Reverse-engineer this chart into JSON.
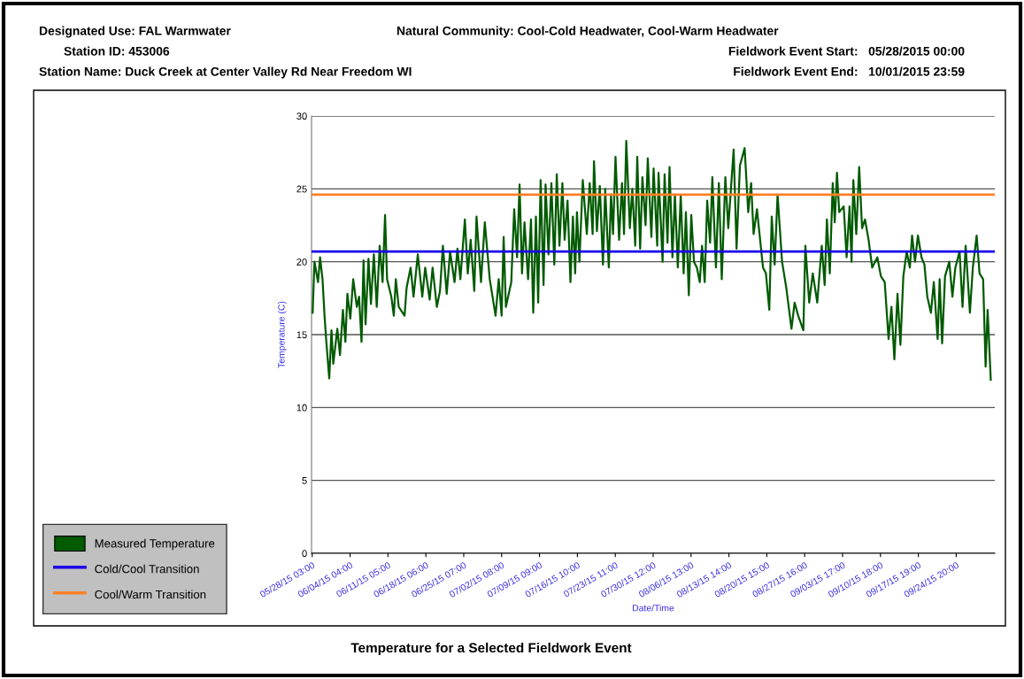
{
  "chart_data": {
    "type": "line",
    "title": "Temperature for a Selected Fieldwork Event",
    "xlabel": "Date/Time",
    "ylabel": "Temperature (C)",
    "annotations": [
      "Designated Use: FAL Warmwater",
      "Natural Community: Cool-Cold Headwater, Cool-Warm Headwater",
      "Station ID: 453006",
      "Fieldwork Event Start:   05/28/2015 00:00",
      "Station Name: Duck Creek at Center Valley Rd Near Freedom WI",
      "Fieldwork Event End:   10/01/2015 23:59"
    ],
    "xlim": [
      "2015-05-28T00:00",
      "2015-10-01T23:59"
    ],
    "xticks": [
      {
        "value": "2015-05-28T03:00",
        "label": "05/28/15 03:00"
      },
      {
        "value": "2015-06-04T04:00",
        "label": "06/04/15 04:00"
      },
      {
        "value": "2015-06-11T05:00",
        "label": "06/11/15 05:00"
      },
      {
        "value": "2015-06-18T06:00",
        "label": "06/18/15 06:00"
      },
      {
        "value": "2015-06-25T07:00",
        "label": "06/25/15 07:00"
      },
      {
        "value": "2015-07-02T08:00",
        "label": "07/02/15 08:00"
      },
      {
        "value": "2015-07-09T09:00",
        "label": "07/09/15 09:00"
      },
      {
        "value": "2015-07-16T10:00",
        "label": "07/16/15 10:00"
      },
      {
        "value": "2015-07-23T11:00",
        "label": "07/23/15 11:00"
      },
      {
        "value": "2015-07-30T12:00",
        "label": "07/30/15 12:00"
      },
      {
        "value": "2015-08-06T13:00",
        "label": "08/06/15 13:00"
      },
      {
        "value": "2015-08-13T14:00",
        "label": "08/13/15 14:00"
      },
      {
        "value": "2015-08-20T15:00",
        "label": "08/20/15 15:00"
      },
      {
        "value": "2015-08-27T16:00",
        "label": "08/27/15 16:00"
      },
      {
        "value": "2015-09-03T17:00",
        "label": "09/03/15 17:00"
      },
      {
        "value": "2015-09-10T18:00",
        "label": "09/10/15 18:00"
      },
      {
        "value": "2015-09-17T19:00",
        "label": "09/17/15 19:00"
      },
      {
        "value": "2015-09-24T20:00",
        "label": "09/24/15 20:00"
      }
    ],
    "ylim": [
      0,
      30
    ],
    "yticks": [
      0,
      5,
      10,
      15,
      20,
      25,
      30
    ],
    "grid": "y",
    "legend": "bottom left",
    "ref_lines": [
      {
        "axis": "y",
        "value": 20.7,
        "label": "Cold/Cool Transition",
        "color": "#1a00e6"
      },
      {
        "axis": "y",
        "value": 24.6,
        "label": "Cool/Warm Transition",
        "color": "#ff7f27"
      }
    ],
    "series": [
      {
        "name": "Measured Temperature",
        "color": "#005a00",
        "x": [
          "2015-05-28T05:00",
          "2015-05-28T13:00",
          "2015-05-29T05:00",
          "2015-05-29T14:00",
          "2015-05-30T01:00",
          "2015-05-30T10:00",
          "2015-05-30T18:00",
          "2015-05-31T07:00",
          "2015-05-31T17:00",
          "2015-06-01T01:00",
          "2015-06-01T19:00",
          "2015-06-02T07:00",
          "2015-06-02T20:00",
          "2015-06-03T07:00",
          "2015-06-03T16:00",
          "2015-06-04T05:00",
          "2015-06-04T18:00",
          "2015-06-05T10:00",
          "2015-06-05T20:00",
          "2015-06-06T07:00",
          "2015-06-06T16:00",
          "2015-06-07T01:00",
          "2015-06-07T14:00",
          "2015-06-08T01:00",
          "2015-06-08T14:00",
          "2015-06-09T03:00",
          "2015-06-09T16:00",
          "2015-06-10T05:00",
          "2015-06-10T16:00",
          "2015-06-11T01:00",
          "2015-06-11T20:00",
          "2015-06-12T07:00",
          "2015-06-12T16:00",
          "2015-06-13T05:00",
          "2015-06-14T07:00",
          "2015-06-14T16:00",
          "2015-06-15T10:00",
          "2015-06-15T23:00",
          "2015-06-16T18:00",
          "2015-06-17T14:00",
          "2015-06-18T03:00",
          "2015-06-18T23:00",
          "2015-06-19T12:00",
          "2015-06-20T07:00",
          "2015-06-20T21:00",
          "2015-06-21T10:00",
          "2015-06-22T03:00",
          "2015-06-22T18:00",
          "2015-06-23T14:00",
          "2015-06-24T03:00",
          "2015-06-24T16:00",
          "2015-06-25T12:00",
          "2015-06-26T01:00",
          "2015-06-26T14:00",
          "2015-06-27T06:00",
          "2015-06-27T16:00",
          "2015-06-28T12:00",
          "2015-06-29T05:00",
          "2015-06-30T03:00",
          "2015-07-01T05:00",
          "2015-07-01T19:00",
          "2015-07-02T08:00",
          "2015-07-02T17:00",
          "2015-07-03T03:00",
          "2015-07-04T03:00",
          "2015-07-04T16:00",
          "2015-07-05T05:00",
          "2015-07-05T16:00",
          "2015-07-06T03:00",
          "2015-07-06T14:00",
          "2015-07-07T06:00",
          "2015-07-07T19:00",
          "2015-07-08T05:00",
          "2015-07-08T17:00",
          "2015-07-09T03:00",
          "2015-07-09T14:00",
          "2015-07-10T03:00",
          "2015-07-10T12:00",
          "2015-07-11T01:00",
          "2015-07-11T14:00",
          "2015-07-12T03:00",
          "2015-07-12T14:00",
          "2015-07-13T02:00",
          "2015-07-13T15:00",
          "2015-07-14T01:00",
          "2015-07-14T14:00",
          "2015-07-15T03:00",
          "2015-07-15T14:00",
          "2015-07-16T00:00",
          "2015-07-16T08:00",
          "2015-07-16T19:00",
          "2015-07-17T10:00",
          "2015-07-18T04:00",
          "2015-07-18T17:00",
          "2015-07-19T06:00",
          "2015-07-19T12:00",
          "2015-07-20T01:00",
          "2015-07-20T14:00",
          "2015-07-21T04:00",
          "2015-07-21T14:00",
          "2015-07-22T06:00",
          "2015-07-22T16:00",
          "2015-07-23T01:00",
          "2015-07-23T12:00",
          "2015-07-24T04:00",
          "2015-07-24T17:00",
          "2015-07-25T02:00",
          "2015-07-25T12:00",
          "2015-07-26T04:00",
          "2015-07-26T15:00",
          "2015-07-27T04:00",
          "2015-07-27T13:00",
          "2015-07-28T02:00",
          "2015-07-28T12:00",
          "2015-07-29T02:00",
          "2015-07-29T12:00",
          "2015-07-30T04:00",
          "2015-07-30T14:00",
          "2015-07-31T06:00",
          "2015-07-31T12:00",
          "2015-08-01T06:00",
          "2015-08-01T15:00",
          "2015-08-02T04:00",
          "2015-08-02T13:00",
          "2015-08-03T02:00",
          "2015-08-03T13:00",
          "2015-08-04T02:00",
          "2015-08-04T15:00",
          "2015-08-05T04:00",
          "2015-08-05T14:00",
          "2015-08-06T03:00",
          "2015-08-06T14:00",
          "2015-08-07T02:00",
          "2015-08-07T15:00",
          "2015-08-08T04:00",
          "2015-08-08T14:00",
          "2015-08-09T02:00",
          "2015-08-09T13:00",
          "2015-08-10T02:00",
          "2015-08-10T12:00",
          "2015-08-11T04:00",
          "2015-08-11T17:00",
          "2015-08-12T06:00",
          "2015-08-12T22:00",
          "2015-08-13T11:00",
          "2015-08-14T11:00",
          "2015-08-15T00:00",
          "2015-08-15T15:00",
          "2015-08-16T12:00",
          "2015-08-17T04:00",
          "2015-08-17T17:00",
          "2015-08-18T04:00",
          "2015-08-18T19:00",
          "2015-08-19T22:00",
          "2015-08-20T11:00",
          "2015-08-21T02:00",
          "2015-08-21T13:00",
          "2015-08-22T02:00",
          "2015-08-22T15:00",
          "2015-08-23T11:00",
          "2015-08-24T06:00",
          "2015-08-25T05:00",
          "2015-08-25T19:00",
          "2015-08-26T11:00",
          "2015-08-27T10:00",
          "2015-08-27T19:00",
          "2015-08-28T12:00",
          "2015-08-29T04:00",
          "2015-08-30T00:00",
          "2015-08-30T20:00",
          "2015-08-31T09:00",
          "2015-08-31T19:00",
          "2015-09-01T08:00",
          "2015-09-01T21:00",
          "2015-09-02T06:00",
          "2015-09-02T16:00",
          "2015-09-03T02:00",
          "2015-09-03T22:00",
          "2015-09-04T11:00",
          "2015-09-05T00:00",
          "2015-09-05T09:00",
          "2015-09-05T17:00",
          "2015-09-06T06:00",
          "2015-09-06T19:00",
          "2015-09-07T08:00",
          "2015-09-07T21:00",
          "2015-09-08T13:00",
          "2015-09-09T05:00",
          "2015-09-10T04:00",
          "2015-09-10T20:00",
          "2015-09-11T13:00",
          "2015-09-12T06:00",
          "2015-09-12T19:00",
          "2015-09-13T08:00",
          "2015-09-13T22:00",
          "2015-09-14T11:00",
          "2015-09-15T00:00",
          "2015-09-15T15:00",
          "2015-09-16T05:00",
          "2015-09-16T15:00",
          "2015-09-17T04:00",
          "2015-09-17T17:00",
          "2015-09-18T09:00",
          "2015-09-18T22:00",
          "2015-09-19T11:00",
          "2015-09-20T03:00",
          "2015-09-20T16:00",
          "2015-09-21T09:00",
          "2015-09-21T18:00",
          "2015-09-22T05:00",
          "2015-09-22T18:00",
          "2015-09-23T13:00",
          "2015-09-24T03:00",
          "2015-09-24T16:00",
          "2015-09-25T11:00",
          "2015-09-26T00:00",
          "2015-09-26T14:00",
          "2015-09-27T09:00",
          "2015-09-27T22:00",
          "2015-09-28T15:00",
          "2015-09-29T04:00",
          "2015-09-29T20:00",
          "2015-09-30T07:00",
          "2015-09-30T16:00",
          "2015-10-01T06:00"
        ],
        "values": [
          16.5,
          20.0,
          18.6,
          20.3,
          18.8,
          16.3,
          14.5,
          12.0,
          15.3,
          13.0,
          15.4,
          13.6,
          16.7,
          14.5,
          17.8,
          16.1,
          18.8,
          16.9,
          17.6,
          14.5,
          20.1,
          15.7,
          20.2,
          17.1,
          20.5,
          16.9,
          21.1,
          18.6,
          23.2,
          18.8,
          17.6,
          16.3,
          18.8,
          16.9,
          16.3,
          18.2,
          19.6,
          17.6,
          20.5,
          17.6,
          19.6,
          17.4,
          19.6,
          16.9,
          18.0,
          21.1,
          17.8,
          20.7,
          18.6,
          20.9,
          18.8,
          22.9,
          19.2,
          21.5,
          18.0,
          23.1,
          18.6,
          22.7,
          18.8,
          16.3,
          18.8,
          16.3,
          21.7,
          16.9,
          18.6,
          23.6,
          20.3,
          25.3,
          19.2,
          22.7,
          18.8,
          22.9,
          16.5,
          23.1,
          17.2,
          25.6,
          18.4,
          25.3,
          20.5,
          25.4,
          19.8,
          26.0,
          21.1,
          25.4,
          21.5,
          24.2,
          18.6,
          23.1,
          19.2,
          23.4,
          20.0,
          25.6,
          21.9,
          25.4,
          21.9,
          26.9,
          22.1,
          25.2,
          19.8,
          25.0,
          19.6,
          24.6,
          21.9,
          27.2,
          21.5,
          25.4,
          21.9,
          28.3,
          22.3,
          25.0,
          21.1,
          27.2,
          20.9,
          25.8,
          22.5,
          27.1,
          21.7,
          26.4,
          21.1,
          26.1,
          20.0,
          26.0,
          21.3,
          26.5,
          20.3,
          24.6,
          19.6,
          24.6,
          19.2,
          23.4,
          17.7,
          23.2,
          20.0,
          19.6,
          18.6,
          21.1,
          18.6,
          24.2,
          21.3,
          25.8,
          19.6,
          25.4,
          18.8,
          25.8,
          22.3,
          27.7,
          20.9,
          26.6,
          27.8,
          23.4,
          25.4,
          21.9,
          23.6,
          19.6,
          19.2,
          16.7,
          23.1,
          19.8,
          24.6,
          20.0,
          18.2,
          15.4,
          17.2,
          16.3,
          15.3,
          21.1,
          17.2,
          19.2,
          17.2,
          21.1,
          18.4,
          22.9,
          19.2,
          25.4,
          22.7,
          26.1,
          23.4,
          23.8,
          20.3,
          23.8,
          20.0,
          25.6,
          21.9,
          26.5,
          22.3,
          22.9,
          21.5,
          19.6,
          20.3,
          19.0,
          18.6,
          14.7,
          16.9,
          13.3,
          17.8,
          14.3,
          19.0,
          20.7,
          19.6,
          21.8,
          20.0,
          21.8,
          20.3,
          19.8,
          17.6,
          16.5,
          18.6,
          14.7,
          18.8,
          14.4,
          19.0,
          20.0,
          17.6,
          19.6,
          20.7,
          16.9,
          21.1,
          16.5,
          19.6,
          21.8,
          19.2,
          18.8,
          12.8,
          16.7,
          11.9
        ]
      }
    ]
  }
}
